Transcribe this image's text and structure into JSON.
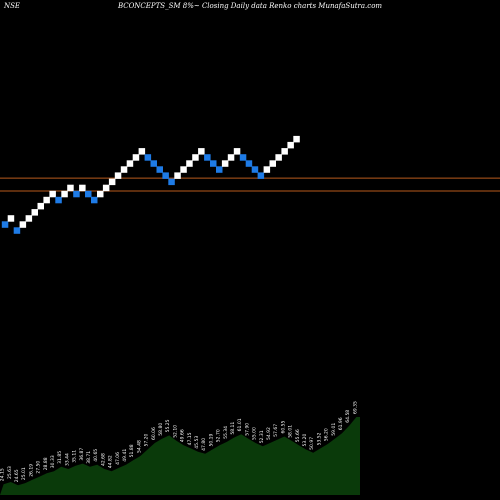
{
  "header": {
    "exchange": "NSE",
    "title": "BCONCEPTS_SM 8%~  Closing Daily data  Renko  charts MunafaSutra.com"
  },
  "chart_data": {
    "type": "renko",
    "direction": [
      "down",
      "up",
      "down",
      "up",
      "up",
      "up",
      "up",
      "up",
      "up",
      "down",
      "up",
      "up",
      "down",
      "up",
      "down",
      "down",
      "up",
      "up",
      "up",
      "up",
      "up",
      "up",
      "up",
      "up",
      "down",
      "down",
      "down",
      "down",
      "down",
      "up",
      "up",
      "up",
      "up",
      "up",
      "down",
      "down",
      "down",
      "up",
      "up",
      "up",
      "down",
      "down",
      "down",
      "down",
      "up",
      "up",
      "up",
      "up",
      "up",
      "up"
    ],
    "levels": [
      20,
      21,
      19,
      20,
      21,
      22,
      23,
      24,
      25,
      24,
      25,
      26,
      25,
      26,
      25,
      24,
      25,
      26,
      27,
      28,
      29,
      30,
      31,
      32,
      31,
      30,
      29,
      28,
      27,
      28,
      29,
      30,
      31,
      32,
      31,
      30,
      29,
      30,
      31,
      32,
      31,
      30,
      29,
      28,
      29,
      30,
      31,
      32,
      33,
      34
    ],
    "price_lines": [
      27.6,
      25.5
    ],
    "colors": {
      "up": "#ffffff",
      "down": "#1e7be6",
      "price_line": "#b85a1c",
      "volume": "#0a3a0a",
      "background": "#000000"
    },
    "volume_labels": [
      "24.15",
      "25.63",
      "24.65",
      "25.01",
      "26.19",
      "27.50",
      "28.88",
      "30.33",
      "31.85",
      "33.44",
      "35.11",
      "36.87",
      "38.71",
      "40.65",
      "42.68",
      "44.82",
      "47.06",
      "49.41",
      "51.88",
      "54.48",
      "57.20",
      "60.06",
      "58.80",
      "55.25",
      "52.10",
      "49.66",
      "47.15",
      "45.53",
      "47.80",
      "50.19",
      "52.70",
      "55.34",
      "58.11",
      "61.01",
      "57.90",
      "55.00",
      "52.31",
      "54.92",
      "57.67",
      "60.55",
      "58.01",
      "55.66",
      "53.20",
      "50.97",
      "53.52",
      "56.20",
      "59.01",
      "61.96",
      "64.58",
      "69.35"
    ],
    "volume_heights": [
      10,
      12,
      9,
      11,
      14,
      17,
      20,
      22,
      26,
      24,
      27,
      29,
      26,
      28,
      24,
      22,
      25,
      28,
      32,
      36,
      42,
      48,
      52,
      55,
      50,
      46,
      43,
      40,
      38,
      42,
      46,
      49,
      53,
      56,
      52,
      48,
      45,
      48,
      51,
      54,
      50,
      46,
      42,
      39,
      43,
      47,
      52,
      57,
      64,
      72
    ]
  }
}
